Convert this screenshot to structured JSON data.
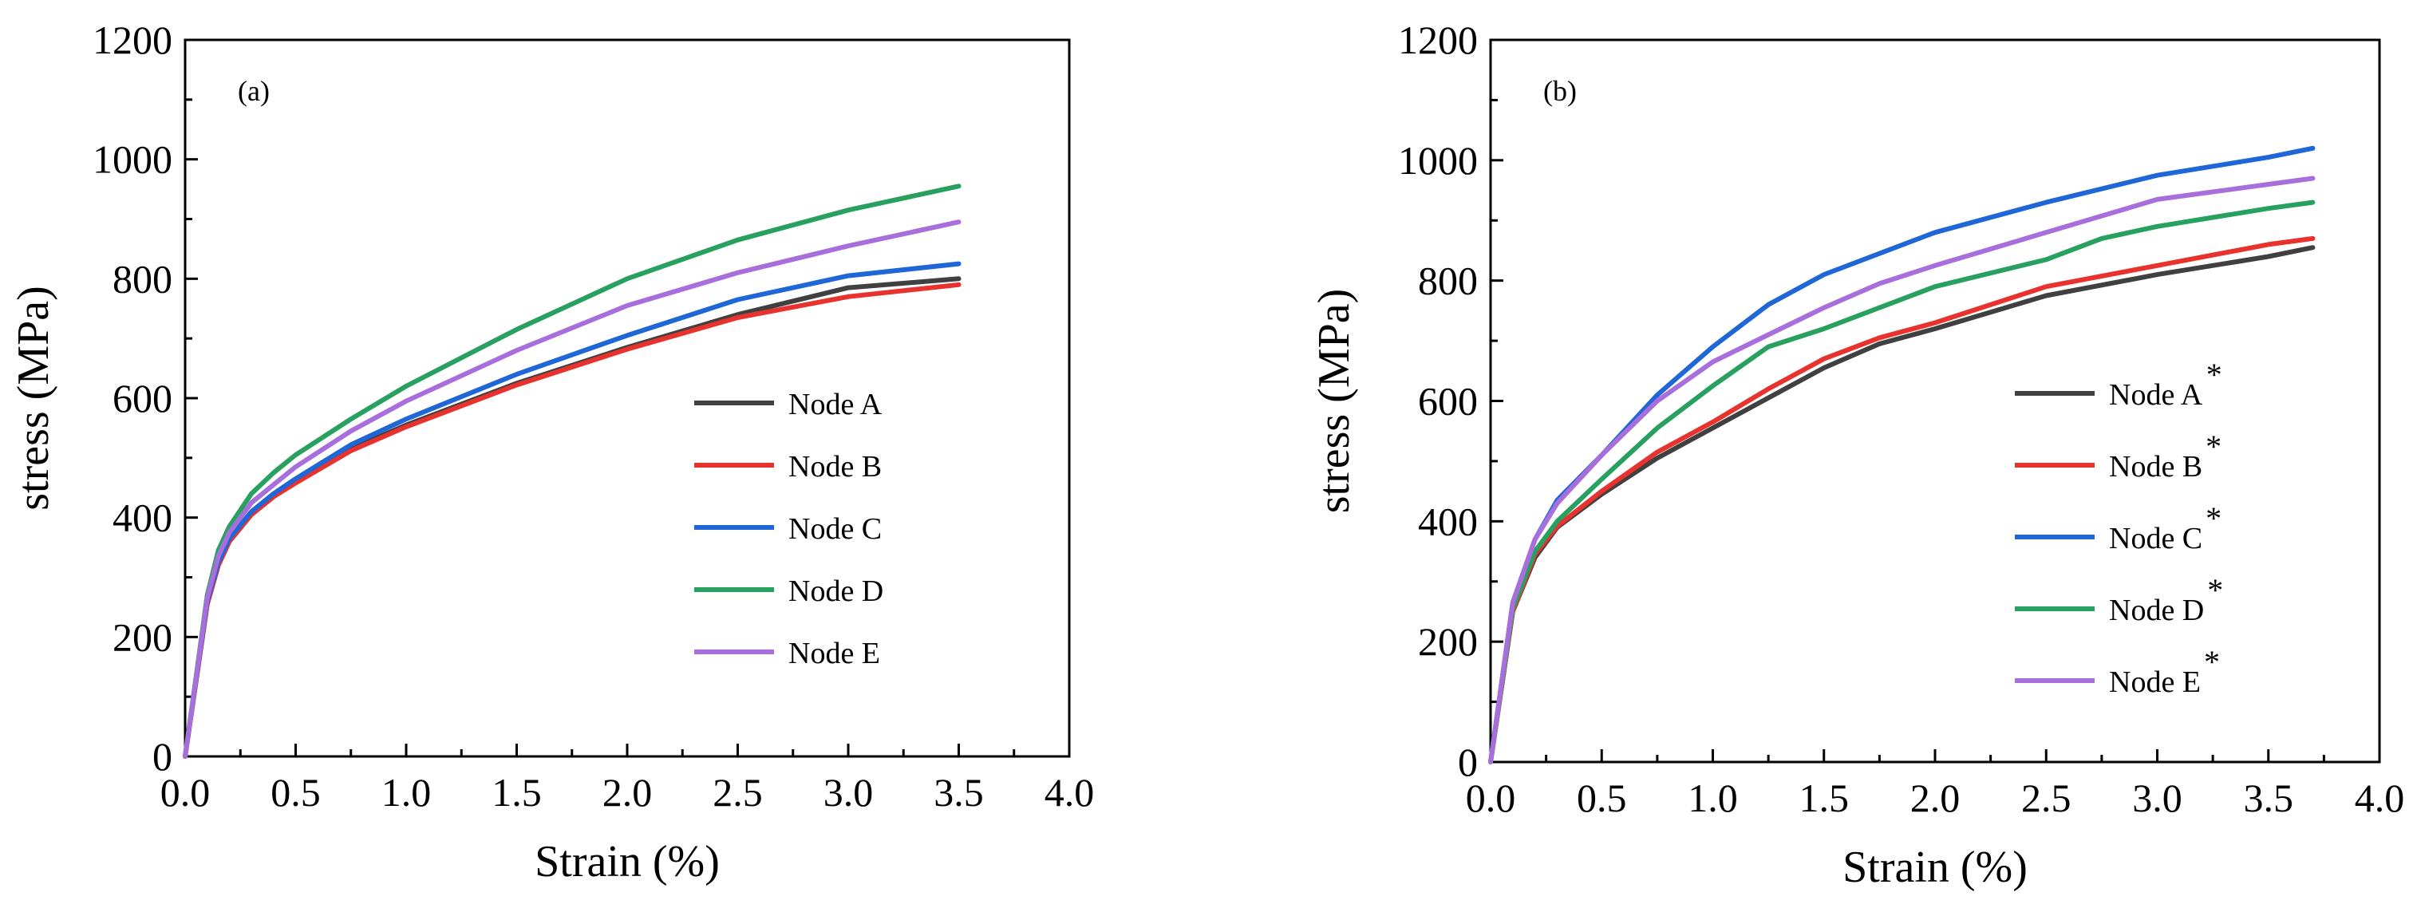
{
  "chart_data": [
    {
      "type": "line",
      "panel_label": "(a)",
      "xlabel": "Strain (%)",
      "ylabel": "stress (MPa)",
      "xlim": [
        0,
        4.0
      ],
      "ylim": [
        0,
        1200
      ],
      "xticks": [
        "0.0",
        "0.5",
        "1.0",
        "1.5",
        "2.0",
        "2.5",
        "3.0",
        "3.5",
        "4.0"
      ],
      "yticks": [
        "0",
        "200",
        "400",
        "600",
        "800",
        "1000",
        "1200"
      ],
      "legend_position": "center-right",
      "series": [
        {
          "name": "Node A",
          "color": "#404040",
          "points": [
            [
              0,
              0
            ],
            [
              0.1,
              255
            ],
            [
              0.15,
              320
            ],
            [
              0.2,
              360
            ],
            [
              0.3,
              405
            ],
            [
              0.4,
              435
            ],
            [
              0.5,
              460
            ],
            [
              0.75,
              515
            ],
            [
              1.0,
              555
            ],
            [
              1.5,
              625
            ],
            [
              2.0,
              685
            ],
            [
              2.5,
              740
            ],
            [
              3.0,
              785
            ],
            [
              3.5,
              800
            ]
          ]
        },
        {
          "name": "Node B",
          "color": "#e8322e",
          "points": [
            [
              0,
              0
            ],
            [
              0.1,
              255
            ],
            [
              0.15,
              320
            ],
            [
              0.2,
              360
            ],
            [
              0.3,
              405
            ],
            [
              0.4,
              435
            ],
            [
              0.5,
              458
            ],
            [
              0.75,
              512
            ],
            [
              1.0,
              552
            ],
            [
              1.5,
              622
            ],
            [
              2.0,
              682
            ],
            [
              2.5,
              735
            ],
            [
              3.0,
              770
            ],
            [
              3.5,
              790
            ]
          ]
        },
        {
          "name": "Node C",
          "color": "#1f66d6",
          "points": [
            [
              0,
              0
            ],
            [
              0.1,
              260
            ],
            [
              0.15,
              325
            ],
            [
              0.2,
              365
            ],
            [
              0.3,
              410
            ],
            [
              0.4,
              440
            ],
            [
              0.5,
              465
            ],
            [
              0.75,
              522
            ],
            [
              1.0,
              565
            ],
            [
              1.5,
              640
            ],
            [
              2.0,
              705
            ],
            [
              2.5,
              765
            ],
            [
              3.0,
              805
            ],
            [
              3.5,
              825
            ]
          ]
        },
        {
          "name": "Node D",
          "color": "#28a060",
          "points": [
            [
              0,
              0
            ],
            [
              0.1,
              270
            ],
            [
              0.15,
              345
            ],
            [
              0.2,
              385
            ],
            [
              0.3,
              440
            ],
            [
              0.4,
              475
            ],
            [
              0.5,
              505
            ],
            [
              0.75,
              565
            ],
            [
              1.0,
              620
            ],
            [
              1.5,
              715
            ],
            [
              2.0,
              800
            ],
            [
              2.5,
              865
            ],
            [
              3.0,
              915
            ],
            [
              3.5,
              955
            ]
          ]
        },
        {
          "name": "Node E",
          "color": "#a86fdc",
          "points": [
            [
              0,
              0
            ],
            [
              0.1,
              265
            ],
            [
              0.15,
              335
            ],
            [
              0.2,
              375
            ],
            [
              0.3,
              425
            ],
            [
              0.4,
              455
            ],
            [
              0.5,
              485
            ],
            [
              0.75,
              545
            ],
            [
              1.0,
              595
            ],
            [
              1.5,
              680
            ],
            [
              2.0,
              755
            ],
            [
              2.5,
              810
            ],
            [
              3.0,
              855
            ],
            [
              3.5,
              895
            ]
          ]
        }
      ]
    },
    {
      "type": "line",
      "panel_label": "(b)",
      "xlabel": "Strain (%)",
      "ylabel": "stress (MPa)",
      "xlim": [
        0,
        4.0
      ],
      "ylim": [
        0,
        1200
      ],
      "xticks": [
        "0.0",
        "0.5",
        "1.0",
        "1.5",
        "2.0",
        "2.5",
        "3.0",
        "3.5",
        "4.0"
      ],
      "yticks": [
        "0",
        "200",
        "400",
        "600",
        "800",
        "1000",
        "1200"
      ],
      "legend_position": "center-right",
      "legend_superscript": "*",
      "series": [
        {
          "name": "Node A",
          "color": "#404040",
          "points": [
            [
              0,
              0
            ],
            [
              0.1,
              250
            ],
            [
              0.2,
              340
            ],
            [
              0.3,
              390
            ],
            [
              0.5,
              445
            ],
            [
              0.75,
              505
            ],
            [
              1.0,
              555
            ],
            [
              1.25,
              605
            ],
            [
              1.5,
              655
            ],
            [
              1.75,
              695
            ],
            [
              2.0,
              720
            ],
            [
              2.5,
              775
            ],
            [
              3.0,
              810
            ],
            [
              3.5,
              840
            ],
            [
              3.7,
              855
            ]
          ]
        },
        {
          "name": "Node B",
          "color": "#e8322e",
          "points": [
            [
              0,
              0
            ],
            [
              0.1,
              250
            ],
            [
              0.2,
              345
            ],
            [
              0.3,
              392
            ],
            [
              0.5,
              450
            ],
            [
              0.75,
              515
            ],
            [
              1.0,
              565
            ],
            [
              1.25,
              620
            ],
            [
              1.5,
              670
            ],
            [
              1.75,
              705
            ],
            [
              2.0,
              730
            ],
            [
              2.5,
              790
            ],
            [
              3.0,
              825
            ],
            [
              3.5,
              860
            ],
            [
              3.7,
              870
            ]
          ]
        },
        {
          "name": "Node C",
          "color": "#1f66d6",
          "points": [
            [
              0,
              0
            ],
            [
              0.1,
              265
            ],
            [
              0.2,
              370
            ],
            [
              0.3,
              435
            ],
            [
              0.5,
              510
            ],
            [
              0.75,
              610
            ],
            [
              1.0,
              690
            ],
            [
              1.25,
              760
            ],
            [
              1.5,
              810
            ],
            [
              1.75,
              845
            ],
            [
              2.0,
              880
            ],
            [
              2.5,
              930
            ],
            [
              3.0,
              975
            ],
            [
              3.5,
              1005
            ],
            [
              3.7,
              1020
            ]
          ]
        },
        {
          "name": "Node D",
          "color": "#28a060",
          "points": [
            [
              0,
              0
            ],
            [
              0.1,
              255
            ],
            [
              0.2,
              350
            ],
            [
              0.3,
              400
            ],
            [
              0.5,
              470
            ],
            [
              0.75,
              555
            ],
            [
              1.0,
              625
            ],
            [
              1.25,
              690
            ],
            [
              1.5,
              720
            ],
            [
              1.75,
              755
            ],
            [
              2.0,
              790
            ],
            [
              2.5,
              835
            ],
            [
              2.75,
              870
            ],
            [
              3.0,
              890
            ],
            [
              3.5,
              920
            ],
            [
              3.7,
              930
            ]
          ]
        },
        {
          "name": "Node E",
          "color": "#a86fdc",
          "points": [
            [
              0,
              0
            ],
            [
              0.1,
              265
            ],
            [
              0.2,
              370
            ],
            [
              0.3,
              430
            ],
            [
              0.5,
              510
            ],
            [
              0.75,
              600
            ],
            [
              1.0,
              665
            ],
            [
              1.25,
              710
            ],
            [
              1.5,
              755
            ],
            [
              1.75,
              795
            ],
            [
              2.0,
              825
            ],
            [
              2.5,
              880
            ],
            [
              3.0,
              935
            ],
            [
              3.5,
              960
            ],
            [
              3.7,
              970
            ]
          ]
        }
      ]
    }
  ]
}
